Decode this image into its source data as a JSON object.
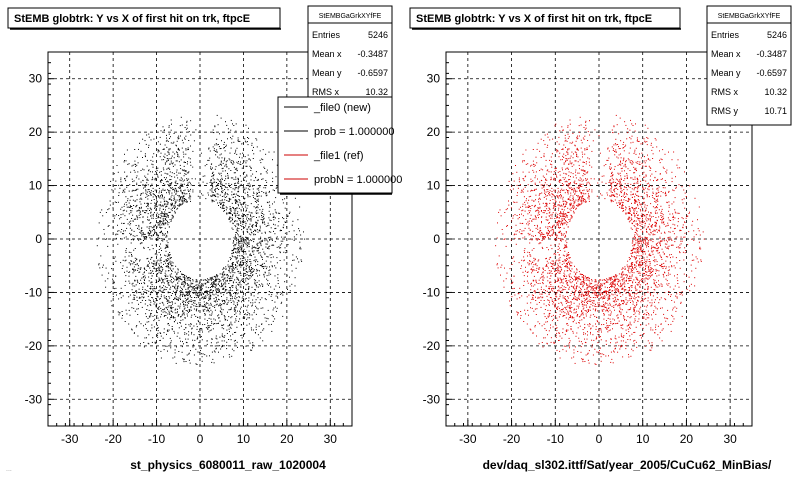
{
  "chart_data": [
    {
      "type": "scatter",
      "title": "StEMB globtrk: Y vs X of first hit on trk, ftpcE",
      "xlabel": "st_physics_6080011_raw_1020004",
      "ylabel": "",
      "xlim": [
        -35,
        35
      ],
      "ylim": [
        -35,
        35
      ],
      "x_ticks": [
        -30,
        -20,
        -10,
        0,
        10,
        20,
        30
      ],
      "y_ticks": [
        -30,
        -20,
        -10,
        0,
        10,
        20,
        30
      ],
      "grid": true,
      "marker_color": "#000000",
      "stats": {
        "name": "StEMBGaGrkXYfFE",
        "rows": [
          {
            "label": "Entries",
            "value": "5246"
          },
          {
            "label": "Mean x",
            "value": "-0.3487"
          },
          {
            "label": "Mean y",
            "value": "-0.6597"
          },
          {
            "label": "RMS x",
            "value": "10.32"
          }
        ]
      },
      "legend": {
        "placement": "top-right",
        "entries": [
          {
            "label": "_file0 (new)",
            "color": "#000000"
          },
          {
            "label": "prob = 1.000000",
            "color": "#000000"
          },
          {
            "label": "_file1 (ref)",
            "color": "#cc0000"
          },
          {
            "label": "probN = 1.000000",
            "color": "#cc0000"
          }
        ]
      },
      "distribution": {
        "entries": 5246,
        "mean_x": -0.3487,
        "mean_y": -0.6597,
        "rms_x": 10.32,
        "rms_y": 10.71,
        "inner_hole_radius": 7.5,
        "outer_radius": 24
      }
    },
    {
      "type": "scatter",
      "title": "StEMB globtrk: Y vs X of first hit on trk, ftpcE",
      "xlabel": "dev/daq_sl302.ittf/Sat/year_2005/CuCu62_MinBias/",
      "ylabel": "",
      "xlim": [
        -35,
        35
      ],
      "ylim": [
        -35,
        35
      ],
      "x_ticks": [
        -30,
        -20,
        -10,
        0,
        10,
        20,
        30
      ],
      "y_ticks": [
        -30,
        -20,
        -10,
        0,
        10,
        20,
        30
      ],
      "grid": true,
      "marker_color": "#dd0000",
      "stats": {
        "name": "StEMBGaGrkXYfFE",
        "rows": [
          {
            "label": "Entries",
            "value": "5246"
          },
          {
            "label": "Mean x",
            "value": "-0.3487"
          },
          {
            "label": "Mean y",
            "value": "-0.6597"
          },
          {
            "label": "RMS x",
            "value": "10.32"
          },
          {
            "label": "RMS y",
            "value": "10.71"
          }
        ]
      },
      "distribution": {
        "entries": 5246,
        "mean_x": -0.3487,
        "mean_y": -0.6597,
        "rms_x": 10.32,
        "rms_y": 10.71,
        "inner_hole_radius": 7.5,
        "outer_radius": 24
      }
    }
  ],
  "footer": "..."
}
